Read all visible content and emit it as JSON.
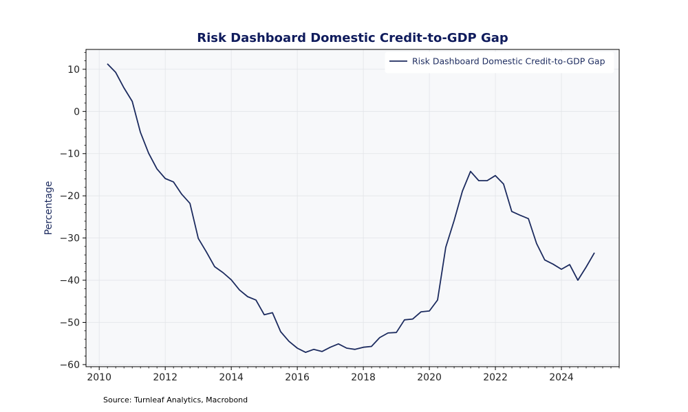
{
  "chart_data": {
    "type": "line",
    "title": "Risk Dashboard Domestic Credit-to-GDP Gap",
    "xlabel": "",
    "ylabel": "Percentage",
    "source": "Source: Turnleaf Analytics, Macrobond",
    "xlim": [
      2009.6,
      2025.75
    ],
    "ylim": [
      -60.5,
      14.7
    ],
    "x_ticks": [
      2010,
      2012,
      2014,
      2016,
      2018,
      2020,
      2022,
      2024
    ],
    "y_ticks": [
      10,
      0,
      -10,
      -20,
      -30,
      -40,
      -50,
      -60
    ],
    "grid": true,
    "legend_position": "top-right",
    "colors": {
      "line": "#1b2a5e",
      "plot_bg": "#f7f8fa",
      "title": "#0f1b5c",
      "grid": "#e2e4e8"
    },
    "series": [
      {
        "name": "Risk Dashboard Domestic Credit-to-GDP Gap",
        "points": [
          [
            "2010-04-01",
            11.3
          ],
          [
            "2010-07-01",
            9.3
          ],
          [
            "2010-10-01",
            5.6
          ],
          [
            "2011-01-01",
            2.4
          ],
          [
            "2011-04-01",
            -4.9
          ],
          [
            "2011-07-01",
            -9.9
          ],
          [
            "2011-10-01",
            -13.6
          ],
          [
            "2012-01-01",
            -15.9
          ],
          [
            "2012-04-01",
            -16.7
          ],
          [
            "2012-07-01",
            -19.6
          ],
          [
            "2012-10-01",
            -21.8
          ],
          [
            "2013-01-01",
            -30.1
          ],
          [
            "2013-04-01",
            -33.3
          ],
          [
            "2013-07-01",
            -36.8
          ],
          [
            "2013-10-01",
            -38.2
          ],
          [
            "2014-01-01",
            -39.9
          ],
          [
            "2014-04-01",
            -42.3
          ],
          [
            "2014-07-01",
            -43.9
          ],
          [
            "2014-10-01",
            -44.7
          ],
          [
            "2015-01-01",
            -48.2
          ],
          [
            "2015-04-01",
            -47.7
          ],
          [
            "2015-07-01",
            -52.2
          ],
          [
            "2015-10-01",
            -54.5
          ],
          [
            "2016-01-01",
            -56.1
          ],
          [
            "2016-04-01",
            -57.1
          ],
          [
            "2016-07-01",
            -56.4
          ],
          [
            "2016-10-01",
            -56.9
          ],
          [
            "2017-01-01",
            -55.9
          ],
          [
            "2017-04-01",
            -55.1
          ],
          [
            "2017-07-01",
            -56.1
          ],
          [
            "2017-10-01",
            -56.4
          ],
          [
            "2018-01-01",
            -55.9
          ],
          [
            "2018-04-01",
            -55.7
          ],
          [
            "2018-07-01",
            -53.6
          ],
          [
            "2018-10-01",
            -52.5
          ],
          [
            "2019-01-01",
            -52.4
          ],
          [
            "2019-04-01",
            -49.4
          ],
          [
            "2019-07-01",
            -49.2
          ],
          [
            "2019-10-01",
            -47.5
          ],
          [
            "2020-01-01",
            -47.3
          ],
          [
            "2020-04-01",
            -44.7
          ],
          [
            "2020-07-01",
            -32.2
          ],
          [
            "2020-10-01",
            -25.9
          ],
          [
            "2021-01-01",
            -18.9
          ],
          [
            "2021-04-01",
            -14.2
          ],
          [
            "2021-07-01",
            -16.4
          ],
          [
            "2021-10-01",
            -16.4
          ],
          [
            "2022-01-01",
            -15.2
          ],
          [
            "2022-04-01",
            -17.2
          ],
          [
            "2022-07-01",
            -23.7
          ],
          [
            "2022-10-01",
            -24.6
          ],
          [
            "2023-01-01",
            -25.4
          ],
          [
            "2023-04-01",
            -31.3
          ],
          [
            "2023-07-01",
            -35.2
          ],
          [
            "2023-10-01",
            -36.2
          ],
          [
            "2024-01-01",
            -37.4
          ],
          [
            "2024-04-01",
            -36.3
          ],
          [
            "2024-07-01",
            -40.0
          ],
          [
            "2024-10-01",
            -36.9
          ],
          [
            "2025-01-01",
            -33.5
          ]
        ]
      }
    ]
  }
}
